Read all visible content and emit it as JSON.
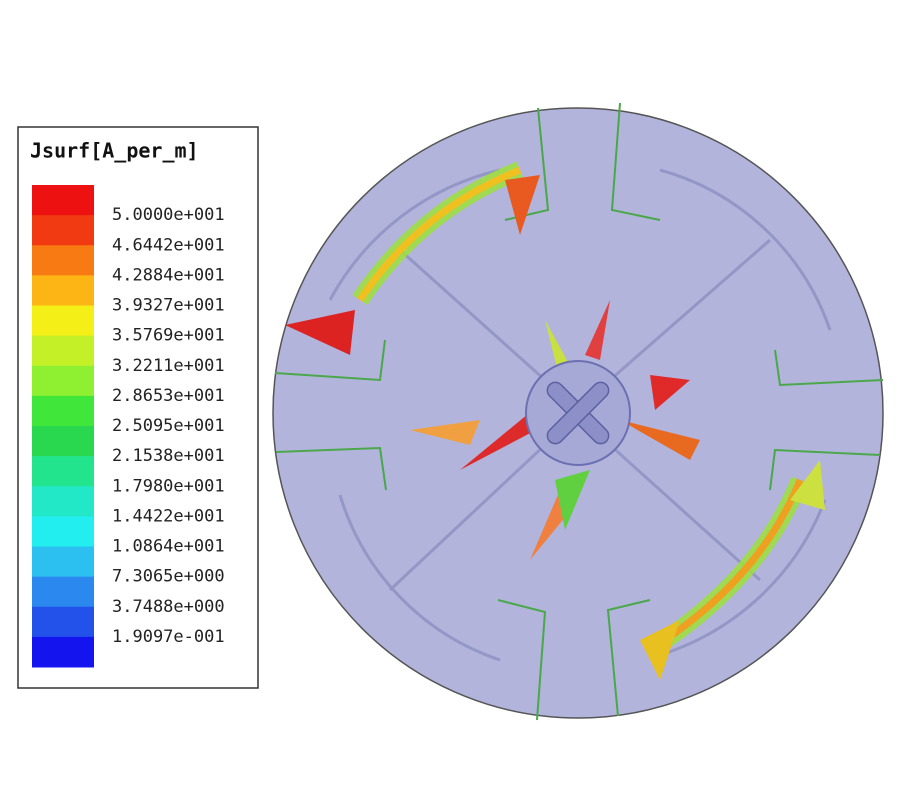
{
  "legend": {
    "title": "Jsurf[A_per_m]",
    "labels": [
      "5.0000e+001",
      "4.6442e+001",
      "4.2884e+001",
      "3.9327e+001",
      "3.5769e+001",
      "3.2211e+001",
      "2.8653e+001",
      "2.5095e+001",
      "2.1538e+001",
      "1.7980e+001",
      "1.4422e+001",
      "1.0864e+001",
      "7.3065e+000",
      "3.7488e+000",
      "1.9097e-001"
    ],
    "colors": [
      "#ee1111",
      "#f23a12",
      "#f87a12",
      "#fcb514",
      "#f5ef18",
      "#c4f028",
      "#8ef030",
      "#40e63a",
      "#2ad850",
      "#22e48c",
      "#22e8c8",
      "#22eef0",
      "#2cc0f0",
      "#2a88ee",
      "#2252ea",
      "#1414ee"
    ]
  }
}
